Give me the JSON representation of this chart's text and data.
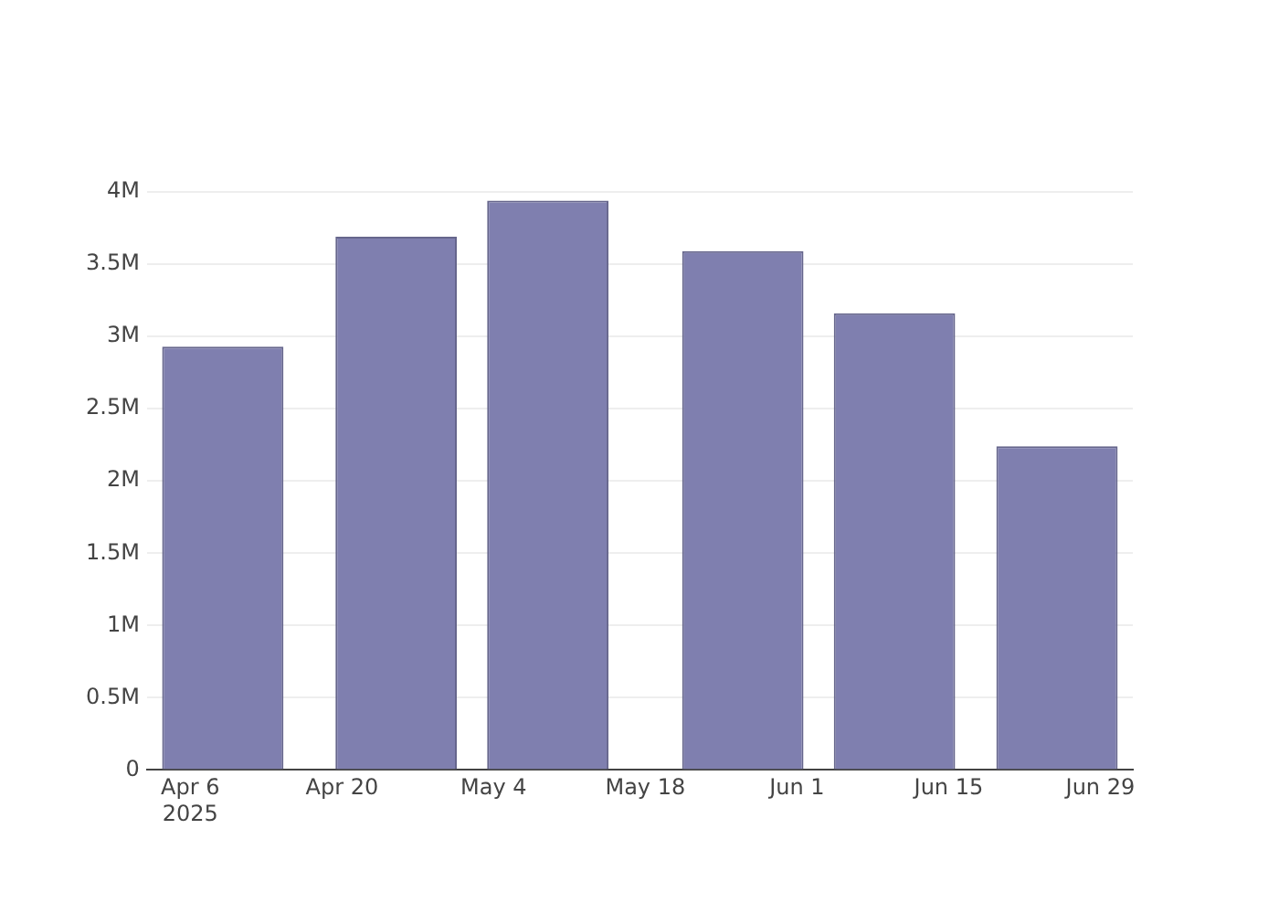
{
  "chart_data": {
    "type": "bar",
    "x": [
      "2025-04-09",
      "2025-04-25",
      "2025-05-09",
      "2025-05-27",
      "2025-06-10",
      "2025-06-25"
    ],
    "values": [
      2930000,
      3690000,
      3940000,
      3590000,
      3160000,
      2240000
    ],
    "color": "#7f7faf",
    "xlim": [
      "2025-04-02",
      "2025-07-02"
    ],
    "xticks": [
      {
        "value": "2025-04-06",
        "label": "Apr 6\n2025"
      },
      {
        "value": "2025-04-20",
        "label": "Apr 20"
      },
      {
        "value": "2025-05-04",
        "label": "May 4"
      },
      {
        "value": "2025-05-18",
        "label": "May 18"
      },
      {
        "value": "2025-06-01",
        "label": "Jun 1"
      },
      {
        "value": "2025-06-15",
        "label": "Jun 15"
      },
      {
        "value": "2025-06-29",
        "label": "Jun 29"
      }
    ],
    "ylim": [
      0,
      4000000
    ],
    "yticks": [
      0,
      {
        "value": 500000,
        "label": "0.5M"
      },
      {
        "value": 1000000,
        "label": "1M"
      },
      {
        "value": 1500000,
        "label": "1.5M"
      },
      {
        "value": 2000000,
        "label": "2M"
      },
      {
        "value": 2500000,
        "label": "2.5M"
      },
      {
        "value": 3000000,
        "label": "3M"
      },
      {
        "value": 3500000,
        "label": "3.5M"
      },
      {
        "value": 4000000,
        "label": "4M"
      }
    ],
    "grid": "y",
    "legend": false
  }
}
